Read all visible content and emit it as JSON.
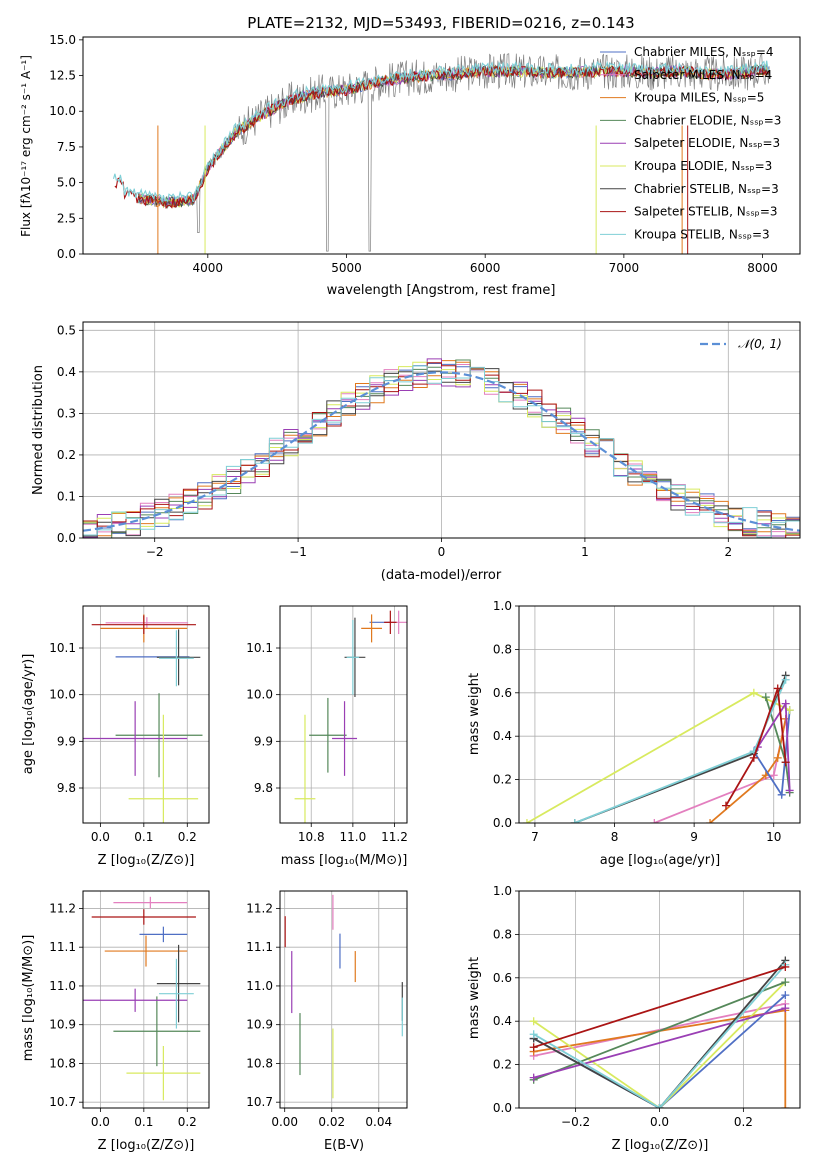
{
  "colors": {
    "chabrier_miles": "#4f6fc4",
    "salpeter_miles": "#e37fbf",
    "kroupa_miles": "#e0791f",
    "chabrier_elodie": "#55885a",
    "salpeter_elodie": "#9a3fb4",
    "kroupa_elodie": "#d8ea5f",
    "chabrier_stelib": "#444444",
    "salpeter_stelib": "#aa1414",
    "kroupa_stelib": "#7fcfd6",
    "data": "#808080",
    "normal": "#5b8fd6"
  },
  "chart_data": [
    {
      "id": "spectrum",
      "type": "line",
      "title": "PLATE=2132, MJD=53493, FIBERID=0216, z=0.143",
      "xlabel": "wavelength [Angstrom, rest frame]",
      "ylabel": "Flux [fλ10⁻¹⁷ erg cm⁻² s⁻¹ A⁻¹]",
      "xlim": [
        3100,
        8270
      ],
      "ylim": [
        0,
        15.2
      ],
      "xticks": [
        4000,
        5000,
        6000,
        7000,
        8000
      ],
      "yticks": [
        0.0,
        2.5,
        5.0,
        7.5,
        10.0,
        12.5,
        15.0
      ],
      "legend": [
        "Chabrier MILES, Nₛₛₚ=4",
        "Salpeter MILES, Nₛₛₚ=4",
        "Kroupa MILES, Nₛₛₚ=5",
        "Chabrier ELODIE, Nₛₛₚ=3",
        "Salpeter ELODIE, Nₛₛₚ=3",
        "Kroupa ELODIE, Nₛₛₚ=3",
        "Chabrier STELIB, Nₛₛₚ=3",
        "Salpeter STELIB, Nₛₛₚ=3",
        "Kroupa STELIB, Nₛₛₚ=3"
      ],
      "legend_position": "top-right",
      "continuum": {
        "x": [
          3300,
          3500,
          3700,
          3900,
          4000,
          4200,
          4400,
          4600,
          4800,
          5000,
          5200,
          5400,
          5600,
          5800,
          6000,
          6200,
          6400,
          6600,
          6800,
          7000,
          7200,
          7400,
          7600,
          7800,
          8000
        ],
        "y": [
          4.5,
          3.9,
          3.6,
          3.8,
          6.0,
          8.5,
          9.8,
          10.8,
          11.3,
          11.5,
          12.0,
          12.3,
          12.5,
          12.6,
          12.8,
          12.8,
          12.7,
          12.7,
          12.8,
          12.8,
          12.7,
          12.8,
          12.6,
          12.6,
          12.9
        ]
      }
    },
    {
      "id": "residuals",
      "type": "histogram",
      "xlabel": "(data-model)/error",
      "ylabel": "Normed distribution",
      "xlim": [
        -2.5,
        2.5
      ],
      "ylim": [
        0,
        0.52
      ],
      "xticks": [
        -2,
        -1,
        0,
        1,
        2
      ],
      "yticks": [
        0.0,
        0.1,
        0.2,
        0.3,
        0.4,
        0.5
      ],
      "legend": [
        "𝒩(0, 1)"
      ],
      "bin_width": 0.1
    },
    {
      "id": "age_vs_Z",
      "type": "scatter",
      "xlabel": "Z [log₁₀(Z/Z⊙)]",
      "ylabel": "age  [log₁₀(age/yr)]",
      "xlim": [
        -0.04,
        0.25
      ],
      "ylim": [
        9.725,
        10.19
      ],
      "xticks": [
        0.0,
        0.1,
        0.2
      ],
      "yticks": [
        9.8,
        9.9,
        10.0,
        10.1
      ],
      "series": [
        {
          "key": "chabrier_miles",
          "x": 0.12,
          "y": 10.081,
          "xerr": 0.085,
          "yerr": 0.0
        },
        {
          "key": "salpeter_miles",
          "x": 0.107,
          "y": 10.154,
          "xerr": 0.095,
          "yerr": 0.012
        },
        {
          "key": "kroupa_miles",
          "x": 0.1,
          "y": 10.142,
          "xerr": 0.1,
          "yerr": 0.03
        },
        {
          "key": "chabrier_elodie",
          "x": 0.135,
          "y": 9.913,
          "xerr": 0.1,
          "yerr": 0.09
        },
        {
          "key": "salpeter_elodie",
          "x": 0.08,
          "y": 9.906,
          "xerr": 0.12,
          "yerr": 0.08
        },
        {
          "key": "kroupa_elodie",
          "x": 0.145,
          "y": 9.777,
          "xerr": 0.08,
          "yerr": 0.18
        },
        {
          "key": "chabrier_stelib",
          "x": 0.18,
          "y": 10.08,
          "xerr": 0.05,
          "yerr": 0.06
        },
        {
          "key": "salpeter_stelib",
          "x": 0.1,
          "y": 10.15,
          "xerr": 0.12,
          "yerr": 0.02
        },
        {
          "key": "kroupa_stelib",
          "x": 0.175,
          "y": 10.078,
          "xerr": 0.04,
          "yerr": 0.06
        }
      ]
    },
    {
      "id": "age_vs_mass",
      "type": "scatter",
      "xlabel": "mass [log₁₀(M/M⊙)]",
      "ylabel": "",
      "xlim": [
        10.65,
        11.26
      ],
      "ylim": [
        9.725,
        10.19
      ],
      "xticks": [
        10.8,
        11.0,
        11.2
      ],
      "yticks": [
        9.8,
        9.9,
        10.0,
        10.1
      ],
      "series": [
        {
          "key": "chabrier_miles",
          "x": 11.13,
          "y": 10.155,
          "xerr": 0.05,
          "yerr": 0.0
        },
        {
          "key": "salpeter_miles",
          "x": 11.22,
          "y": 10.155,
          "xerr": 0.05,
          "yerr": 0.025
        },
        {
          "key": "kroupa_miles",
          "x": 11.09,
          "y": 10.142,
          "xerr": 0.05,
          "yerr": 0.03
        },
        {
          "key": "chabrier_elodie",
          "x": 10.88,
          "y": 9.913,
          "xerr": 0.09,
          "yerr": 0.08
        },
        {
          "key": "salpeter_elodie",
          "x": 10.96,
          "y": 9.906,
          "xerr": 0.06,
          "yerr": 0.08
        },
        {
          "key": "kroupa_elodie",
          "x": 10.77,
          "y": 9.777,
          "xerr": 0.05,
          "yerr": 0.18
        },
        {
          "key": "chabrier_stelib",
          "x": 11.01,
          "y": 10.08,
          "xerr": 0.05,
          "yerr": 0.085
        },
        {
          "key": "salpeter_stelib",
          "x": 11.18,
          "y": 10.155,
          "xerr": 0.03,
          "yerr": 0.025
        },
        {
          "key": "kroupa_stelib",
          "x": 11.0,
          "y": 10.08,
          "xerr": 0.03,
          "yerr": 0.08
        }
      ]
    },
    {
      "id": "mass_weight_vs_age",
      "type": "line",
      "xlabel": "age  [log₁₀(age/yr)]",
      "ylabel": "mass weight",
      "xlim": [
        6.8,
        10.33
      ],
      "ylim": [
        0,
        1.0
      ],
      "xticks": [
        7,
        8,
        9,
        10
      ],
      "yticks": [
        0.0,
        0.2,
        0.4,
        0.6,
        0.8,
        1.0
      ],
      "series": [
        {
          "key": "salpeter_miles",
          "x": [
            8.5,
            10.0,
            10.15
          ],
          "y": [
            0.0,
            0.22,
            0.48
          ]
        },
        {
          "key": "kroupa_miles",
          "x": [
            9.2,
            9.9,
            10.05,
            10.15
          ],
          "y": [
            0.0,
            0.22,
            0.3,
            0.48
          ]
        },
        {
          "key": "chabrier_miles",
          "x": [
            9.75,
            10.1,
            10.2
          ],
          "y": [
            0.33,
            0.13,
            0.52
          ]
        },
        {
          "key": "kroupa_elodie",
          "x": [
            6.9,
            9.75,
            10.2
          ],
          "y": [
            0.0,
            0.6,
            0.52
          ]
        },
        {
          "key": "chabrier_elodie",
          "x": [
            9.9,
            10.15,
            10.2
          ],
          "y": [
            0.58,
            0.28,
            0.14
          ]
        },
        {
          "key": "salpeter_elodie",
          "x": [
            9.8,
            10.15,
            10.2
          ],
          "y": [
            0.35,
            0.55,
            0.15
          ]
        },
        {
          "key": "chabrier_stelib",
          "x": [
            7.5,
            9.75,
            10.15
          ],
          "y": [
            0.0,
            0.32,
            0.68
          ]
        },
        {
          "key": "kroupa_stelib",
          "x": [
            7.5,
            9.75,
            10.15
          ],
          "y": [
            0.0,
            0.33,
            0.66
          ]
        },
        {
          "key": "salpeter_stelib",
          "x": [
            9.4,
            9.75,
            10.05,
            10.15
          ],
          "y": [
            0.08,
            0.3,
            0.62,
            0.28
          ]
        }
      ]
    },
    {
      "id": "mass_vs_Z",
      "type": "scatter",
      "xlabel": "Z [log₁₀(Z/Z⊙)]",
      "ylabel": "mass [log₁₀(M/M⊙)]",
      "xlim": [
        -0.04,
        0.25
      ],
      "ylim": [
        10.685,
        11.245
      ],
      "xticks": [
        0.0,
        0.1,
        0.2
      ],
      "yticks": [
        10.7,
        10.8,
        10.9,
        11.0,
        11.1,
        11.2
      ],
      "series": [
        {
          "key": "chabrier_miles",
          "x": 0.145,
          "y": 11.133,
          "xerr": 0.055,
          "yerr": 0.02
        },
        {
          "key": "salpeter_miles",
          "x": 0.115,
          "y": 11.215,
          "xerr": 0.085,
          "yerr": 0.015
        },
        {
          "key": "kroupa_miles",
          "x": 0.105,
          "y": 11.09,
          "xerr": 0.095,
          "yerr": 0.04
        },
        {
          "key": "chabrier_elodie",
          "x": 0.13,
          "y": 10.883,
          "xerr": 0.1,
          "yerr": 0.09
        },
        {
          "key": "salpeter_elodie",
          "x": 0.08,
          "y": 10.963,
          "xerr": 0.12,
          "yerr": 0.03
        },
        {
          "key": "kroupa_elodie",
          "x": 0.145,
          "y": 10.775,
          "xerr": 0.085,
          "yerr": 0.07
        },
        {
          "key": "chabrier_stelib",
          "x": 0.18,
          "y": 11.006,
          "xerr": 0.05,
          "yerr": 0.1
        },
        {
          "key": "salpeter_stelib",
          "x": 0.1,
          "y": 11.178,
          "xerr": 0.12,
          "yerr": 0.02
        },
        {
          "key": "kroupa_stelib",
          "x": 0.175,
          "y": 10.98,
          "xerr": 0.04,
          "yerr": 0.09
        }
      ]
    },
    {
      "id": "mass_vs_ebv",
      "type": "scatter",
      "xlabel": "E(B-V)",
      "ylabel": "",
      "xlim": [
        -0.002,
        0.052
      ],
      "ylim": [
        10.685,
        11.245
      ],
      "xticks": [
        0.0,
        0.02,
        0.04
      ],
      "yticks": [
        10.7,
        10.8,
        10.9,
        11.0,
        11.1,
        11.2
      ],
      "series": [
        {
          "key": "chabrier_miles",
          "x": 0.0235,
          "y": 11.09,
          "yerr": 0.045
        },
        {
          "key": "salpeter_miles",
          "x": 0.0205,
          "y": 11.19,
          "yerr": 0.045
        },
        {
          "key": "kroupa_miles",
          "x": 0.03,
          "y": 11.05,
          "yerr": 0.04
        },
        {
          "key": "chabrier_elodie",
          "x": 0.0065,
          "y": 10.85,
          "yerr": 0.08
        },
        {
          "key": "salpeter_elodie",
          "x": 0.003,
          "y": 11.01,
          "yerr": 0.08
        },
        {
          "key": "kroupa_elodie",
          "x": 0.0205,
          "y": 10.8,
          "yerr": 0.09
        },
        {
          "key": "chabrier_stelib",
          "x": 0.05,
          "y": 10.96,
          "yerr": 0.05
        },
        {
          "key": "salpeter_stelib",
          "x": 0.0002,
          "y": 11.14,
          "yerr": 0.04
        },
        {
          "key": "kroupa_stelib",
          "x": 0.05,
          "y": 10.92,
          "yerr": 0.05
        }
      ]
    },
    {
      "id": "mass_weight_vs_Z",
      "type": "line",
      "xlabel": "Z [log₁₀(Z/Z⊙)]",
      "ylabel": "mass weight",
      "xlim": [
        -0.335,
        0.335
      ],
      "ylim": [
        0,
        1.0
      ],
      "xticks": [
        -0.2,
        0.0,
        0.2
      ],
      "yticks": [
        0.0,
        0.2,
        0.4,
        0.6,
        0.8,
        1.0
      ],
      "series": [
        {
          "key": "salpeter_miles",
          "x": [
            -0.3,
            0.3
          ],
          "y": [
            0.24,
            0.48
          ]
        },
        {
          "key": "kroupa_miles",
          "x": [
            -0.3,
            0.3,
            0.3
          ],
          "y": [
            0.26,
            0.45,
            0.0
          ]
        },
        {
          "key": "chabrier_miles",
          "x": [
            -0.3,
            0.0,
            0.3
          ],
          "y": [
            0.32,
            0.0,
            0.52
          ]
        },
        {
          "key": "kroupa_elodie",
          "x": [
            -0.3,
            0.0,
            0.3
          ],
          "y": [
            0.4,
            0.0,
            0.58
          ]
        },
        {
          "key": "chabrier_elodie",
          "x": [
            -0.3,
            0.3
          ],
          "y": [
            0.13,
            0.58
          ]
        },
        {
          "key": "salpeter_elodie",
          "x": [
            -0.3,
            0.3
          ],
          "y": [
            0.14,
            0.46
          ]
        },
        {
          "key": "chabrier_stelib",
          "x": [
            -0.3,
            0.0,
            0.3
          ],
          "y": [
            0.32,
            0.0,
            0.68
          ]
        },
        {
          "key": "kroupa_stelib",
          "x": [
            -0.3,
            0.0,
            0.3
          ],
          "y": [
            0.34,
            0.0,
            0.66
          ]
        },
        {
          "key": "salpeter_stelib",
          "x": [
            -0.3,
            0.3
          ],
          "y": [
            0.28,
            0.65
          ]
        }
      ]
    }
  ]
}
